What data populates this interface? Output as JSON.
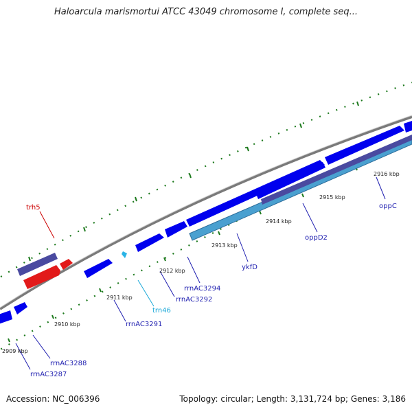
{
  "title": "Haloarcula marismortui ATCC 43049 chromosome I, complete seq...",
  "footer": {
    "accession": "Accession: NC_006396",
    "summary": "Topology: circular; Length: 3,131,724 bp; Genes: 3,186"
  },
  "colors": {
    "backbone": "#7a7a7a",
    "cds": "#0000ee",
    "trna": "#2ab4e6",
    "rrna": "#e21a1a",
    "rrna_outline": "#4a4aa0",
    "operon": "#4aa0d0",
    "tick": "#1d7a1d",
    "label_blue": "#1f1fb0",
    "label_red": "#cc0000",
    "label_cyan": "#1aa8d8"
  },
  "scale_labels": [
    "2909 kbp",
    "2910 kbp",
    "2911 kbp",
    "2912 kbp",
    "2913 kbp",
    "2914 kbp",
    "2915 kbp",
    "2916 kbp"
  ],
  "gene_labels": [
    {
      "text": "trh5",
      "type": "rrna"
    },
    {
      "text": "trn46",
      "type": "trna"
    },
    {
      "text": "rrnAC3287",
      "type": "cds"
    },
    {
      "text": "rrnAC3288",
      "type": "cds"
    },
    {
      "text": "rrnAC3291",
      "type": "cds"
    },
    {
      "text": "rrnAC3292",
      "type": "cds"
    },
    {
      "text": "rrnAC3294",
      "type": "cds"
    },
    {
      "text": "ykfD",
      "type": "cds"
    },
    {
      "text": "oppD2",
      "type": "cds"
    },
    {
      "text": "oppC",
      "type": "cds"
    }
  ]
}
